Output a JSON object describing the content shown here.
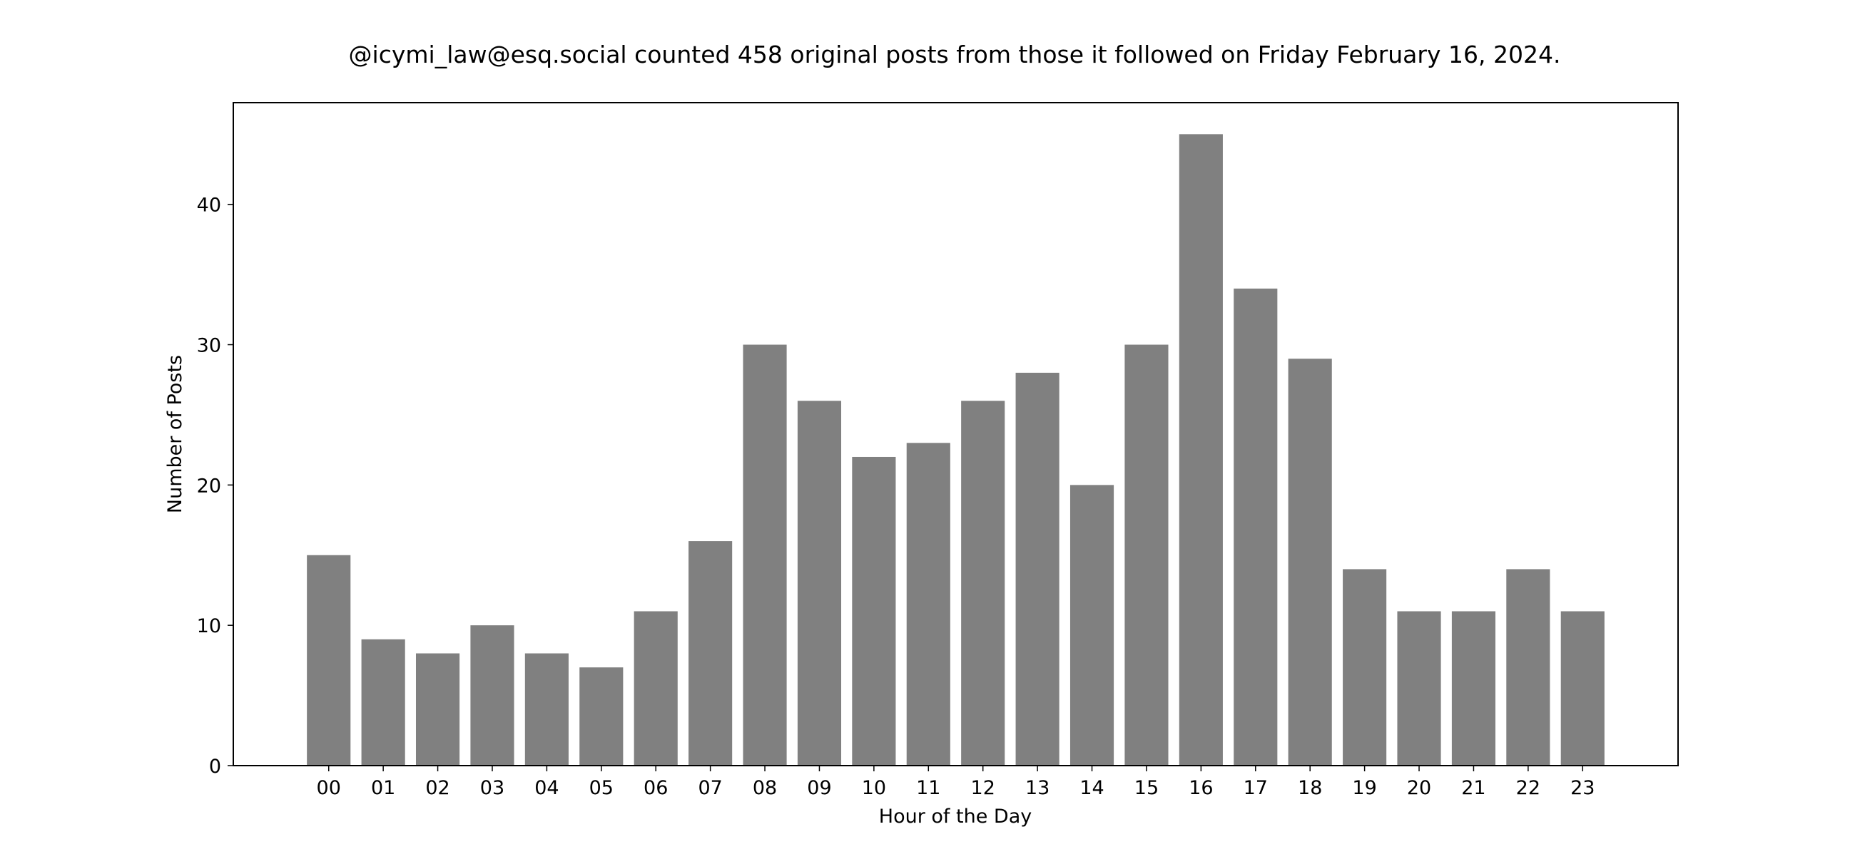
{
  "chart_data": {
    "type": "bar",
    "title": "@icymi_law@esq.social counted 458 original posts from those it followed on Friday February 16, 2024.",
    "xlabel": "Hour of the Day",
    "ylabel": "Number of Posts",
    "categories": [
      "00",
      "01",
      "02",
      "03",
      "04",
      "05",
      "06",
      "07",
      "08",
      "09",
      "10",
      "11",
      "12",
      "13",
      "14",
      "15",
      "16",
      "17",
      "18",
      "19",
      "20",
      "21",
      "22",
      "23"
    ],
    "values": [
      15,
      9,
      8,
      10,
      8,
      7,
      11,
      16,
      30,
      26,
      22,
      23,
      26,
      28,
      20,
      30,
      45,
      34,
      29,
      14,
      11,
      11,
      14,
      11
    ],
    "ylim": [
      0,
      47.25
    ],
    "yticks": [
      0,
      10,
      20,
      30,
      40
    ],
    "grid": false,
    "bar_color": "#808080"
  }
}
